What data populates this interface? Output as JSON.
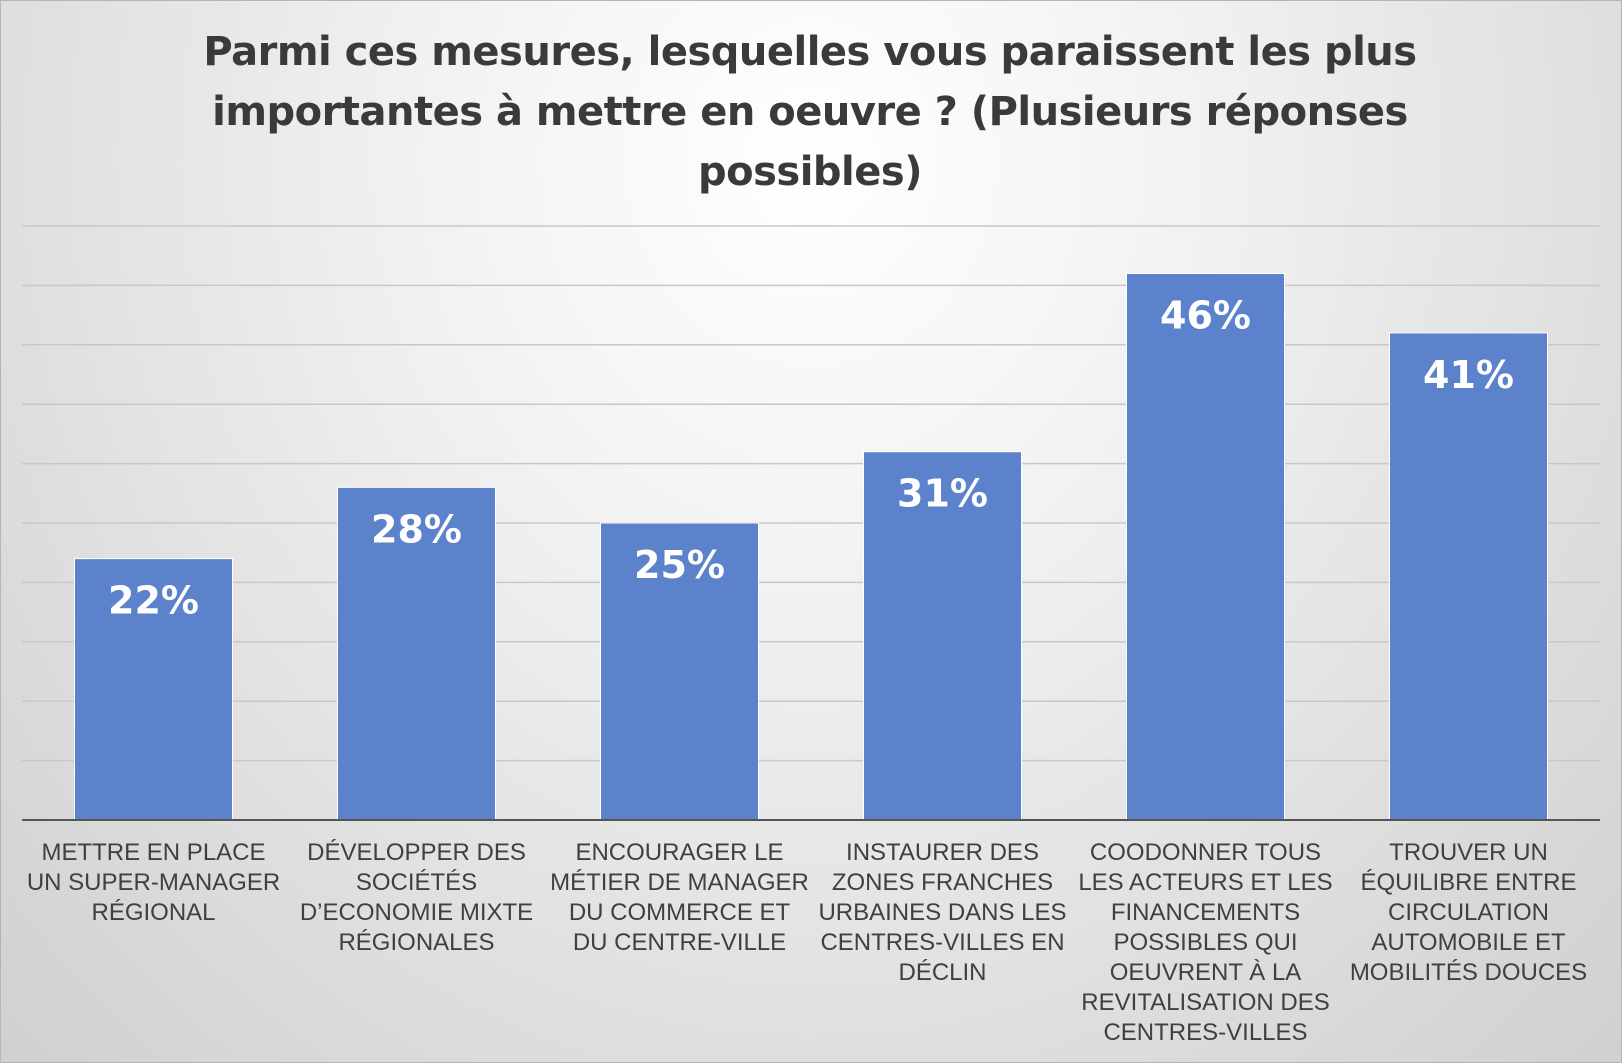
{
  "chart_data": {
    "type": "bar",
    "title": "Parmi ces mesures, lesquelles vous paraissent les plus importantes à mettre en oeuvre ? (Plusieurs réponses possibles)",
    "categories": [
      "METTRE EN PLACE UN SUPER-MANAGER RÉGIONAL",
      "DÉVELOPPER DES SOCIÉTÉS D’ECONOMIE MIXTE RÉGIONALES",
      "ENCOURAGER LE MÉTIER DE MANAGER DU COMMERCE ET DU CENTRE-VILLE",
      "INSTAURER DES ZONES FRANCHES URBAINES DANS LES CENTRES-VILLES EN DÉCLIN",
      "COODONNER TOUS LES ACTEURS ET LES FINANCEMENTS POSSIBLES QUI OEUVRENT À LA REVITALISATION DES CENTRES-VILLES",
      "TROUVER UN ÉQUILIBRE ENTRE CIRCULATION AUTOMOBILE ET MOBILITÉS DOUCES"
    ],
    "values": [
      22,
      28,
      25,
      31,
      46,
      41
    ],
    "data_labels": [
      "22%",
      "28%",
      "25%",
      "31%",
      "46%",
      "41%"
    ],
    "ylim": [
      0,
      50
    ],
    "grid": true,
    "bar_color": "#5b82ca",
    "grid_color": "#c8c8c8"
  }
}
